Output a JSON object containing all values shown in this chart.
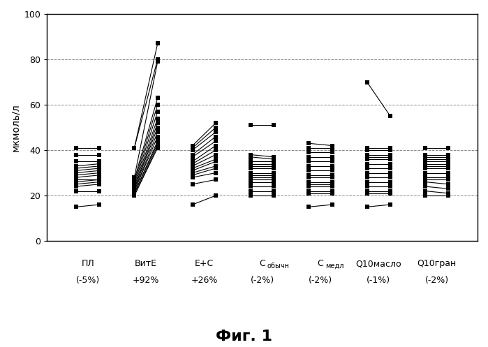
{
  "groups": [
    {
      "label_line1": "ПЛ",
      "label_line2": "(-5%)",
      "x_before": 0.8,
      "x_after": 1.2,
      "before": [
        15,
        22,
        24,
        25,
        26,
        27,
        28,
        29,
        30,
        31,
        32,
        33,
        35,
        38,
        41
      ],
      "after": [
        16,
        22,
        25,
        26,
        27,
        27,
        29,
        30,
        31,
        32,
        33,
        34,
        35,
        38,
        41
      ]
    },
    {
      "label_line1": "ВитЕ",
      "label_line2": "+92%",
      "x_before": 1.8,
      "x_after": 2.2,
      "before": [
        20,
        20,
        21,
        21,
        22,
        22,
        23,
        23,
        24,
        25,
        26,
        27,
        28,
        41,
        41
      ],
      "after": [
        41,
        42,
        43,
        44,
        46,
        48,
        50,
        52,
        54,
        57,
        60,
        63,
        79,
        80,
        87
      ]
    },
    {
      "label_line1": "E+C",
      "label_line2": "+26%",
      "x_before": 2.8,
      "x_after": 3.2,
      "before": [
        16,
        25,
        28,
        29,
        30,
        31,
        32,
        33,
        34,
        35,
        37,
        38,
        40,
        41,
        42
      ],
      "after": [
        20,
        27,
        30,
        32,
        33,
        35,
        36,
        38,
        40,
        42,
        44,
        46,
        48,
        50,
        52
      ]
    },
    {
      "label_line1": "Собычн",
      "label_line2": "(-2%)",
      "label_subscript": true,
      "x_before": 3.8,
      "x_after": 4.2,
      "before": [
        20,
        22,
        24,
        26,
        27,
        28,
        29,
        30,
        32,
        33,
        34,
        35,
        37,
        38,
        51
      ],
      "after": [
        20,
        22,
        24,
        26,
        27,
        28,
        29,
        30,
        32,
        33,
        34,
        35,
        36,
        37,
        51
      ]
    },
    {
      "label_line1": "Смедл",
      "label_line2": "(-2%)",
      "label_subscript": true,
      "x_before": 4.8,
      "x_after": 5.2,
      "before": [
        15,
        21,
        22,
        24,
        25,
        26,
        28,
        29,
        31,
        33,
        35,
        37,
        39,
        41,
        43
      ],
      "after": [
        16,
        21,
        22,
        24,
        25,
        26,
        28,
        29,
        31,
        33,
        35,
        37,
        39,
        41,
        42
      ]
    },
    {
      "label_line1": "Q10масло",
      "label_line2": "(-1%)",
      "x_before": 5.8,
      "x_after": 6.2,
      "before": [
        15,
        21,
        22,
        24,
        26,
        28,
        30,
        32,
        34,
        36,
        37,
        38,
        40,
        41,
        70
      ],
      "after": [
        16,
        21,
        22,
        24,
        26,
        28,
        30,
        32,
        34,
        36,
        37,
        38,
        40,
        41,
        55
      ]
    },
    {
      "label_line1": "Q10гран",
      "label_line2": "(-2%)",
      "x_before": 6.8,
      "x_after": 7.2,
      "before": [
        20,
        22,
        24,
        26,
        27,
        28,
        30,
        32,
        33,
        34,
        35,
        36,
        37,
        38,
        41
      ],
      "after": [
        20,
        21,
        23,
        25,
        27,
        28,
        30,
        32,
        33,
        34,
        35,
        36,
        37,
        38,
        41
      ]
    }
  ],
  "ylabel": "мкмоль/л",
  "ylim": [
    0,
    100
  ],
  "yticks": [
    0,
    20,
    40,
    60,
    80,
    100
  ],
  "title": "Фиг. 1",
  "marker": "s",
  "marker_size": 5,
  "line_color": "black",
  "marker_color": "black",
  "bg_color": "white",
  "grid_color": "#555555",
  "xlim_left": 0.3,
  "xlim_right": 7.7,
  "figsize": [
    6.99,
    4.97
  ],
  "dpi": 100
}
